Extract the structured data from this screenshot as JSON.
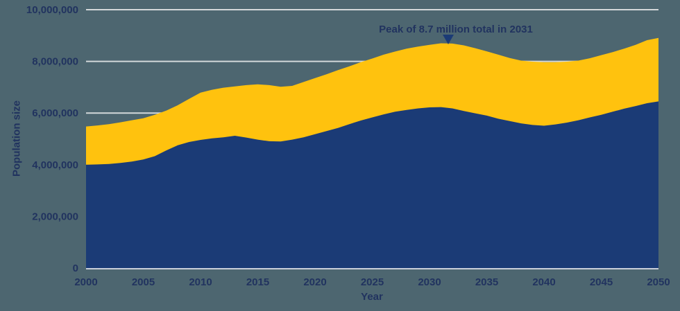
{
  "page": {
    "background_color": "#4D6670"
  },
  "chart_data": {
    "type": "area",
    "stacked": true,
    "title": "",
    "xlabel": "Year",
    "ylabel": "Population size",
    "values_unit": "millions of people",
    "xlim": [
      2000,
      2050
    ],
    "ylim_millions": [
      0,
      10
    ],
    "grid": "horizontal",
    "legend": "none",
    "x": [
      2000,
      2001,
      2002,
      2003,
      2004,
      2005,
      2006,
      2007,
      2008,
      2009,
      2010,
      2011,
      2012,
      2013,
      2014,
      2015,
      2016,
      2017,
      2018,
      2019,
      2020,
      2021,
      2022,
      2023,
      2024,
      2025,
      2026,
      2027,
      2028,
      2029,
      2030,
      2031,
      2032,
      2033,
      2034,
      2035,
      2036,
      2037,
      2038,
      2039,
      2040,
      2041,
      2042,
      2043,
      2044,
      2045,
      2046,
      2047,
      2048,
      2049,
      2050
    ],
    "series": [
      {
        "name": "navy-lower-band",
        "color": "#1B3B76",
        "values_millions": [
          4.0,
          4.01,
          4.03,
          4.07,
          4.12,
          4.2,
          4.33,
          4.55,
          4.75,
          4.88,
          4.96,
          5.02,
          5.06,
          5.12,
          5.05,
          4.97,
          4.91,
          4.9,
          4.97,
          5.06,
          5.18,
          5.3,
          5.42,
          5.57,
          5.71,
          5.83,
          5.95,
          6.05,
          6.12,
          6.18,
          6.22,
          6.23,
          6.18,
          6.08,
          5.99,
          5.9,
          5.78,
          5.69,
          5.6,
          5.54,
          5.51,
          5.56,
          5.63,
          5.72,
          5.83,
          5.93,
          6.05,
          6.17,
          6.27,
          6.38,
          6.45
        ]
      },
      {
        "name": "gold-upper-band",
        "color": "#FFC20E",
        "values_millions": [
          1.48,
          1.51,
          1.54,
          1.57,
          1.6,
          1.6,
          1.6,
          1.54,
          1.55,
          1.67,
          1.83,
          1.88,
          1.92,
          1.91,
          2.03,
          2.14,
          2.17,
          2.12,
          2.08,
          2.14,
          2.17,
          2.2,
          2.24,
          2.24,
          2.26,
          2.28,
          2.31,
          2.33,
          2.37,
          2.39,
          2.42,
          2.47,
          2.51,
          2.54,
          2.52,
          2.49,
          2.48,
          2.44,
          2.43,
          2.45,
          2.46,
          2.41,
          2.36,
          2.31,
          2.29,
          2.31,
          2.31,
          2.32,
          2.37,
          2.44,
          2.46
        ]
      }
    ],
    "totals_millions": [
      5.48,
      5.52,
      5.57,
      5.64,
      5.72,
      5.8,
      5.93,
      6.09,
      6.3,
      6.55,
      6.79,
      6.9,
      6.98,
      7.03,
      7.08,
      7.11,
      7.08,
      7.02,
      7.05,
      7.2,
      7.35,
      7.5,
      7.66,
      7.81,
      7.97,
      8.11,
      8.26,
      8.38,
      8.49,
      8.57,
      8.64,
      8.7,
      8.69,
      8.62,
      8.51,
      8.39,
      8.26,
      8.13,
      8.03,
      7.99,
      7.97,
      7.97,
      7.99,
      8.03,
      8.12,
      8.24,
      8.36,
      8.49,
      8.64,
      8.82,
      8.91
    ],
    "y_ticks": [
      {
        "value_millions": 0,
        "label": "0"
      },
      {
        "value_millions": 2,
        "label": "2,000,000"
      },
      {
        "value_millions": 4,
        "label": "4,000,000"
      },
      {
        "value_millions": 6,
        "label": "6,000,000"
      },
      {
        "value_millions": 8,
        "label": "8,000,000"
      },
      {
        "value_millions": 10,
        "label": "10,000,000"
      }
    ],
    "x_ticks": [
      {
        "value": 2000,
        "label": "2000"
      },
      {
        "value": 2005,
        "label": "2005"
      },
      {
        "value": 2010,
        "label": "2010"
      },
      {
        "value": 2015,
        "label": "2015"
      },
      {
        "value": 2020,
        "label": "2020"
      },
      {
        "value": 2025,
        "label": "2025"
      },
      {
        "value": 2030,
        "label": "2030"
      },
      {
        "value": 2035,
        "label": "2035"
      },
      {
        "value": 2040,
        "label": "2040"
      },
      {
        "value": 2045,
        "label": "2045"
      },
      {
        "value": 2050,
        "label": "2050"
      }
    ],
    "annotation": {
      "text": "Peak of 8.7 million total in 2031",
      "marker": "triangle-down",
      "year": 2031,
      "total_millions": 8.7
    },
    "colors": {
      "background": "#4D6670",
      "grid": "#D4D9DB",
      "axis_line": "#C9CFDB",
      "text": "#21335F"
    }
  }
}
